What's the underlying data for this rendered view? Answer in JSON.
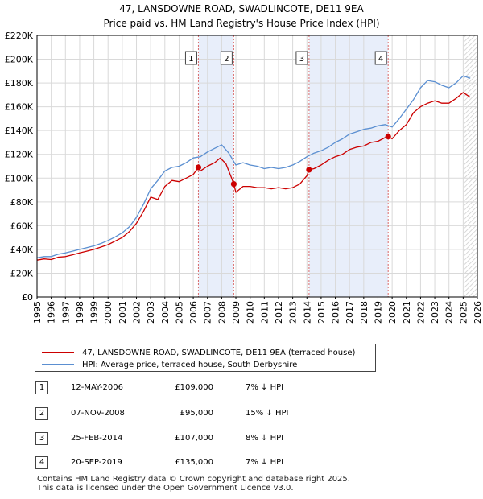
{
  "title": {
    "line1": "47, LANSDOWNE ROAD, SWADLINCOTE, DE11 9EA",
    "line2": "Price paid vs. HM Land Registry's House Price Index (HPI)"
  },
  "colors": {
    "price_line": "#cc0000",
    "hpi_line": "#5b8fd1",
    "shade": "#e8eefa",
    "grid": "#d9d9d9",
    "event_line": "#d96a6a"
  },
  "chart_data": {
    "type": "line",
    "xlabel": "",
    "ylabel": "",
    "xlim": [
      1995,
      2026
    ],
    "ylim": [
      0,
      220000
    ],
    "x_ticks": [
      "1995",
      "1996",
      "1997",
      "1998",
      "1999",
      "2000",
      "2001",
      "2002",
      "2003",
      "2004",
      "2005",
      "2006",
      "2007",
      "2008",
      "2009",
      "2010",
      "2011",
      "2012",
      "2013",
      "2014",
      "2015",
      "2016",
      "2017",
      "2018",
      "2019",
      "2020",
      "2021",
      "2022",
      "2023",
      "2024",
      "2025",
      "2026"
    ],
    "y_ticks": [
      {
        "value": 0,
        "label": "£0"
      },
      {
        "value": 20000,
        "label": "£20K"
      },
      {
        "value": 40000,
        "label": "£40K"
      },
      {
        "value": 60000,
        "label": "£60K"
      },
      {
        "value": 80000,
        "label": "£80K"
      },
      {
        "value": 100000,
        "label": "£100K"
      },
      {
        "value": 120000,
        "label": "£120K"
      },
      {
        "value": 140000,
        "label": "£140K"
      },
      {
        "value": 160000,
        "label": "£160K"
      },
      {
        "value": 180000,
        "label": "£180K"
      },
      {
        "value": 200000,
        "label": "£200K"
      },
      {
        "value": 220000,
        "label": "£220K"
      }
    ],
    "shaded_ranges": [
      [
        2006.36,
        2008.85
      ],
      [
        2014.15,
        2019.72
      ]
    ],
    "hatch_from": 2025.1,
    "series": [
      {
        "name": "47, LANSDOWNE ROAD, SWADLINCOTE, DE11 9EA (terraced house)",
        "color": "#cc0000",
        "x": [
          1995,
          1995.5,
          1996,
          1996.5,
          1997,
          1997.5,
          1998,
          1998.5,
          1999,
          1999.5,
          2000,
          2000.5,
          2001,
          2001.5,
          2002,
          2002.5,
          2003,
          2003.5,
          2004,
          2004.5,
          2005,
          2005.5,
          2006,
          2006.36,
          2006.5,
          2007,
          2007.5,
          2007.9,
          2008.3,
          2008.7,
          2008.85,
          2009,
          2009.5,
          2010,
          2010.5,
          2011,
          2011.5,
          2012,
          2012.5,
          2013,
          2013.5,
          2014,
          2014.15,
          2014.5,
          2015,
          2015.5,
          2016,
          2016.5,
          2017,
          2017.5,
          2018,
          2018.5,
          2019,
          2019.5,
          2019.72,
          2020,
          2020.5,
          2021,
          2021.5,
          2022,
          2022.5,
          2023,
          2023.5,
          2024,
          2024.5,
          2025,
          2025.5
        ],
        "values": [
          31000,
          32000,
          31500,
          33500,
          34000,
          35500,
          37000,
          38500,
          40000,
          42000,
          44000,
          47000,
          50000,
          55000,
          62000,
          72000,
          84000,
          82000,
          93000,
          98000,
          97000,
          100000,
          103000,
          109000,
          106000,
          110000,
          113000,
          117000,
          112000,
          100000,
          95000,
          88000,
          93000,
          93000,
          92000,
          92000,
          91000,
          92000,
          91000,
          92000,
          95000,
          102000,
          107000,
          108000,
          111000,
          115000,
          118000,
          120000,
          124000,
          126000,
          127000,
          130000,
          131000,
          134000,
          135000,
          133000,
          140000,
          145000,
          155000,
          160000,
          163000,
          165000,
          163000,
          163000,
          167000,
          172000,
          168000
        ]
      },
      {
        "name": "HPI: Average price, terraced house, South Derbyshire",
        "color": "#5b8fd1",
        "x": [
          1995,
          1995.5,
          1996,
          1996.5,
          1997,
          1997.5,
          1998,
          1998.5,
          1999,
          1999.5,
          2000,
          2000.5,
          2001,
          2001.5,
          2002,
          2002.5,
          2003,
          2003.5,
          2004,
          2004.5,
          2005,
          2005.5,
          2006,
          2006.5,
          2007,
          2007.5,
          2008,
          2008.5,
          2009,
          2009.5,
          2010,
          2010.5,
          2011,
          2011.5,
          2012,
          2012.5,
          2013,
          2013.5,
          2014,
          2014.5,
          2015,
          2015.5,
          2016,
          2016.5,
          2017,
          2017.5,
          2018,
          2018.5,
          2019,
          2019.5,
          2020,
          2020.5,
          2021,
          2021.5,
          2022,
          2022.5,
          2023,
          2023.5,
          2024,
          2024.5,
          2025,
          2025.5
        ],
        "values": [
          33000,
          34000,
          34000,
          36000,
          37000,
          38500,
          40000,
          41500,
          43000,
          45000,
          47500,
          50500,
          54000,
          59000,
          67000,
          78000,
          91000,
          98000,
          106000,
          109000,
          110000,
          113000,
          117000,
          118000,
          122000,
          125000,
          128000,
          121000,
          111000,
          113000,
          111000,
          110000,
          108000,
          109000,
          108000,
          109000,
          111000,
          114000,
          118000,
          121000,
          123000,
          126000,
          130000,
          133000,
          137000,
          139000,
          141000,
          142000,
          144000,
          145000,
          143000,
          150000,
          158000,
          166000,
          176000,
          182000,
          181000,
          178000,
          176000,
          180000,
          186000,
          184000
        ]
      }
    ],
    "events": [
      {
        "label": "1",
        "x": 2006.36,
        "value": 109000
      },
      {
        "label": "2",
        "x": 2008.85,
        "value": 95000
      },
      {
        "label": "3",
        "x": 2014.15,
        "value": 107000
      },
      {
        "label": "4",
        "x": 2019.72,
        "value": 135000
      }
    ]
  },
  "legend": {
    "price_label": "47, LANSDOWNE ROAD, SWADLINCOTE, DE11 9EA (terraced house)",
    "hpi_label": "HPI: Average price, terraced house, South Derbyshire"
  },
  "sales": [
    {
      "num": "1",
      "date": "12-MAY-2006",
      "price": "£109,000",
      "hpi": "7% ↓ HPI"
    },
    {
      "num": "2",
      "date": "07-NOV-2008",
      "price": "£95,000",
      "hpi": "15% ↓ HPI"
    },
    {
      "num": "3",
      "date": "25-FEB-2014",
      "price": "£107,000",
      "hpi": "8% ↓ HPI"
    },
    {
      "num": "4",
      "date": "20-SEP-2019",
      "price": "£135,000",
      "hpi": "7% ↓ HPI"
    }
  ],
  "footer": {
    "line1": "Contains HM Land Registry data © Crown copyright and database right 2025.",
    "line2": "This data is licensed under the Open Government Licence v3.0."
  }
}
